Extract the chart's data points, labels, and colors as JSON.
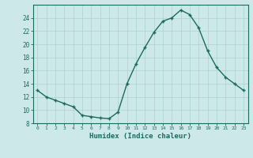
{
  "x": [
    0,
    1,
    2,
    3,
    4,
    5,
    6,
    7,
    8,
    9,
    10,
    11,
    12,
    13,
    14,
    15,
    16,
    17,
    18,
    19,
    20,
    21,
    22,
    23
  ],
  "y": [
    13,
    12,
    11.5,
    11,
    10.5,
    9.2,
    9.0,
    8.8,
    8.7,
    9.7,
    14.0,
    17.0,
    19.5,
    21.8,
    23.5,
    24.0,
    25.2,
    24.5,
    22.5,
    19.0,
    16.5,
    15.0,
    14.0,
    13.0
  ],
  "line_color": "#1a6b5e",
  "bg_color": "#cce8e8",
  "grid_color": "#aad0d0",
  "xlabel": "Humidex (Indice chaleur)",
  "xlim": [
    -0.5,
    23.5
  ],
  "ylim": [
    8,
    26
  ],
  "yticks": [
    8,
    10,
    12,
    14,
    16,
    18,
    20,
    22,
    24
  ],
  "xticks": [
    0,
    1,
    2,
    3,
    4,
    5,
    6,
    7,
    8,
    9,
    10,
    11,
    12,
    13,
    14,
    15,
    16,
    17,
    18,
    19,
    20,
    21,
    22,
    23
  ],
  "xtick_labels": [
    "0",
    "1",
    "2",
    "3",
    "4",
    "5",
    "6",
    "7",
    "8",
    "9",
    "10",
    "11",
    "12",
    "13",
    "14",
    "15",
    "16",
    "17",
    "18",
    "19",
    "20",
    "21",
    "22",
    "23"
  ],
  "marker": "+",
  "markersize": 3.5,
  "linewidth": 1.0
}
